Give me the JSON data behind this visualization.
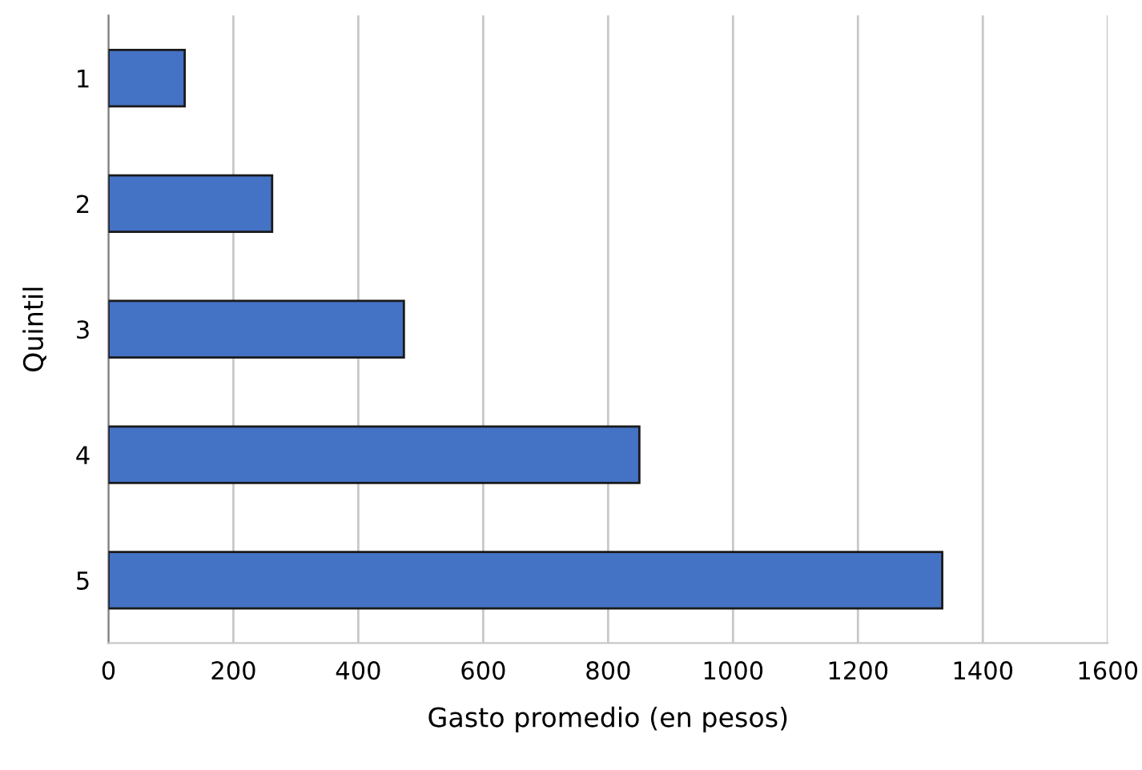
{
  "chart_data": {
    "type": "bar",
    "orientation": "horizontal",
    "categories": [
      "1",
      "2",
      "3",
      "4",
      "5"
    ],
    "values": [
      122,
      262,
      473,
      850,
      1335
    ],
    "color": "#4472c4",
    "xlabel": "Gasto promedio (en pesos)",
    "ylabel": "Quintil",
    "xlim": [
      0,
      1600
    ],
    "xticks": [
      0,
      200,
      400,
      600,
      800,
      1000,
      1200,
      1400,
      1600
    ],
    "grid": "x"
  }
}
